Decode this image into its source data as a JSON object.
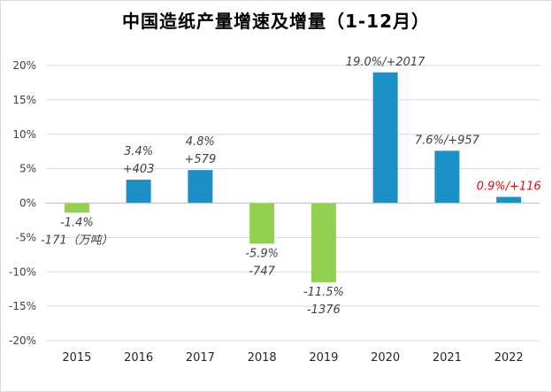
{
  "chart_data": {
    "type": "bar",
    "title": "中国造纸产量增速及增量（1-12月）",
    "categories": [
      "2015",
      "2016",
      "2017",
      "2018",
      "2019",
      "2020",
      "2021",
      "2022"
    ],
    "values": [
      -1.4,
      3.4,
      4.8,
      -5.9,
      -11.5,
      19.0,
      7.6,
      0.9
    ],
    "units": "%",
    "data_labels": [
      [
        "-1.4%",
        "-171（万吨）"
      ],
      [
        "3.4%",
        "+403"
      ],
      [
        "4.8%",
        "+579"
      ],
      [
        "-5.9%",
        "-747"
      ],
      [
        "-11.5%",
        "-1376"
      ],
      [
        "19.0%/+2017"
      ],
      [
        "7.6%/+957"
      ],
      [
        "0.9%/+116"
      ]
    ],
    "ylim": [
      -20,
      20
    ],
    "yticks": [
      -20,
      -15,
      -10,
      -5,
      0,
      5,
      10,
      15,
      20
    ],
    "ytick_labels": [
      "-20%",
      "-15%",
      "-10%",
      "-5%",
      "0%",
      "5%",
      "10%",
      "15%",
      "20%"
    ],
    "xlabel": "",
    "ylabel": "",
    "grid": true,
    "legend": "none",
    "colors": {
      "positive": "#1b8fc6",
      "negative": "#92d050",
      "highlight_label": "#ff0000",
      "label": "#404040",
      "grid": "#d9d9d9",
      "axis_text": "#404040"
    },
    "highlight_index": 7
  }
}
